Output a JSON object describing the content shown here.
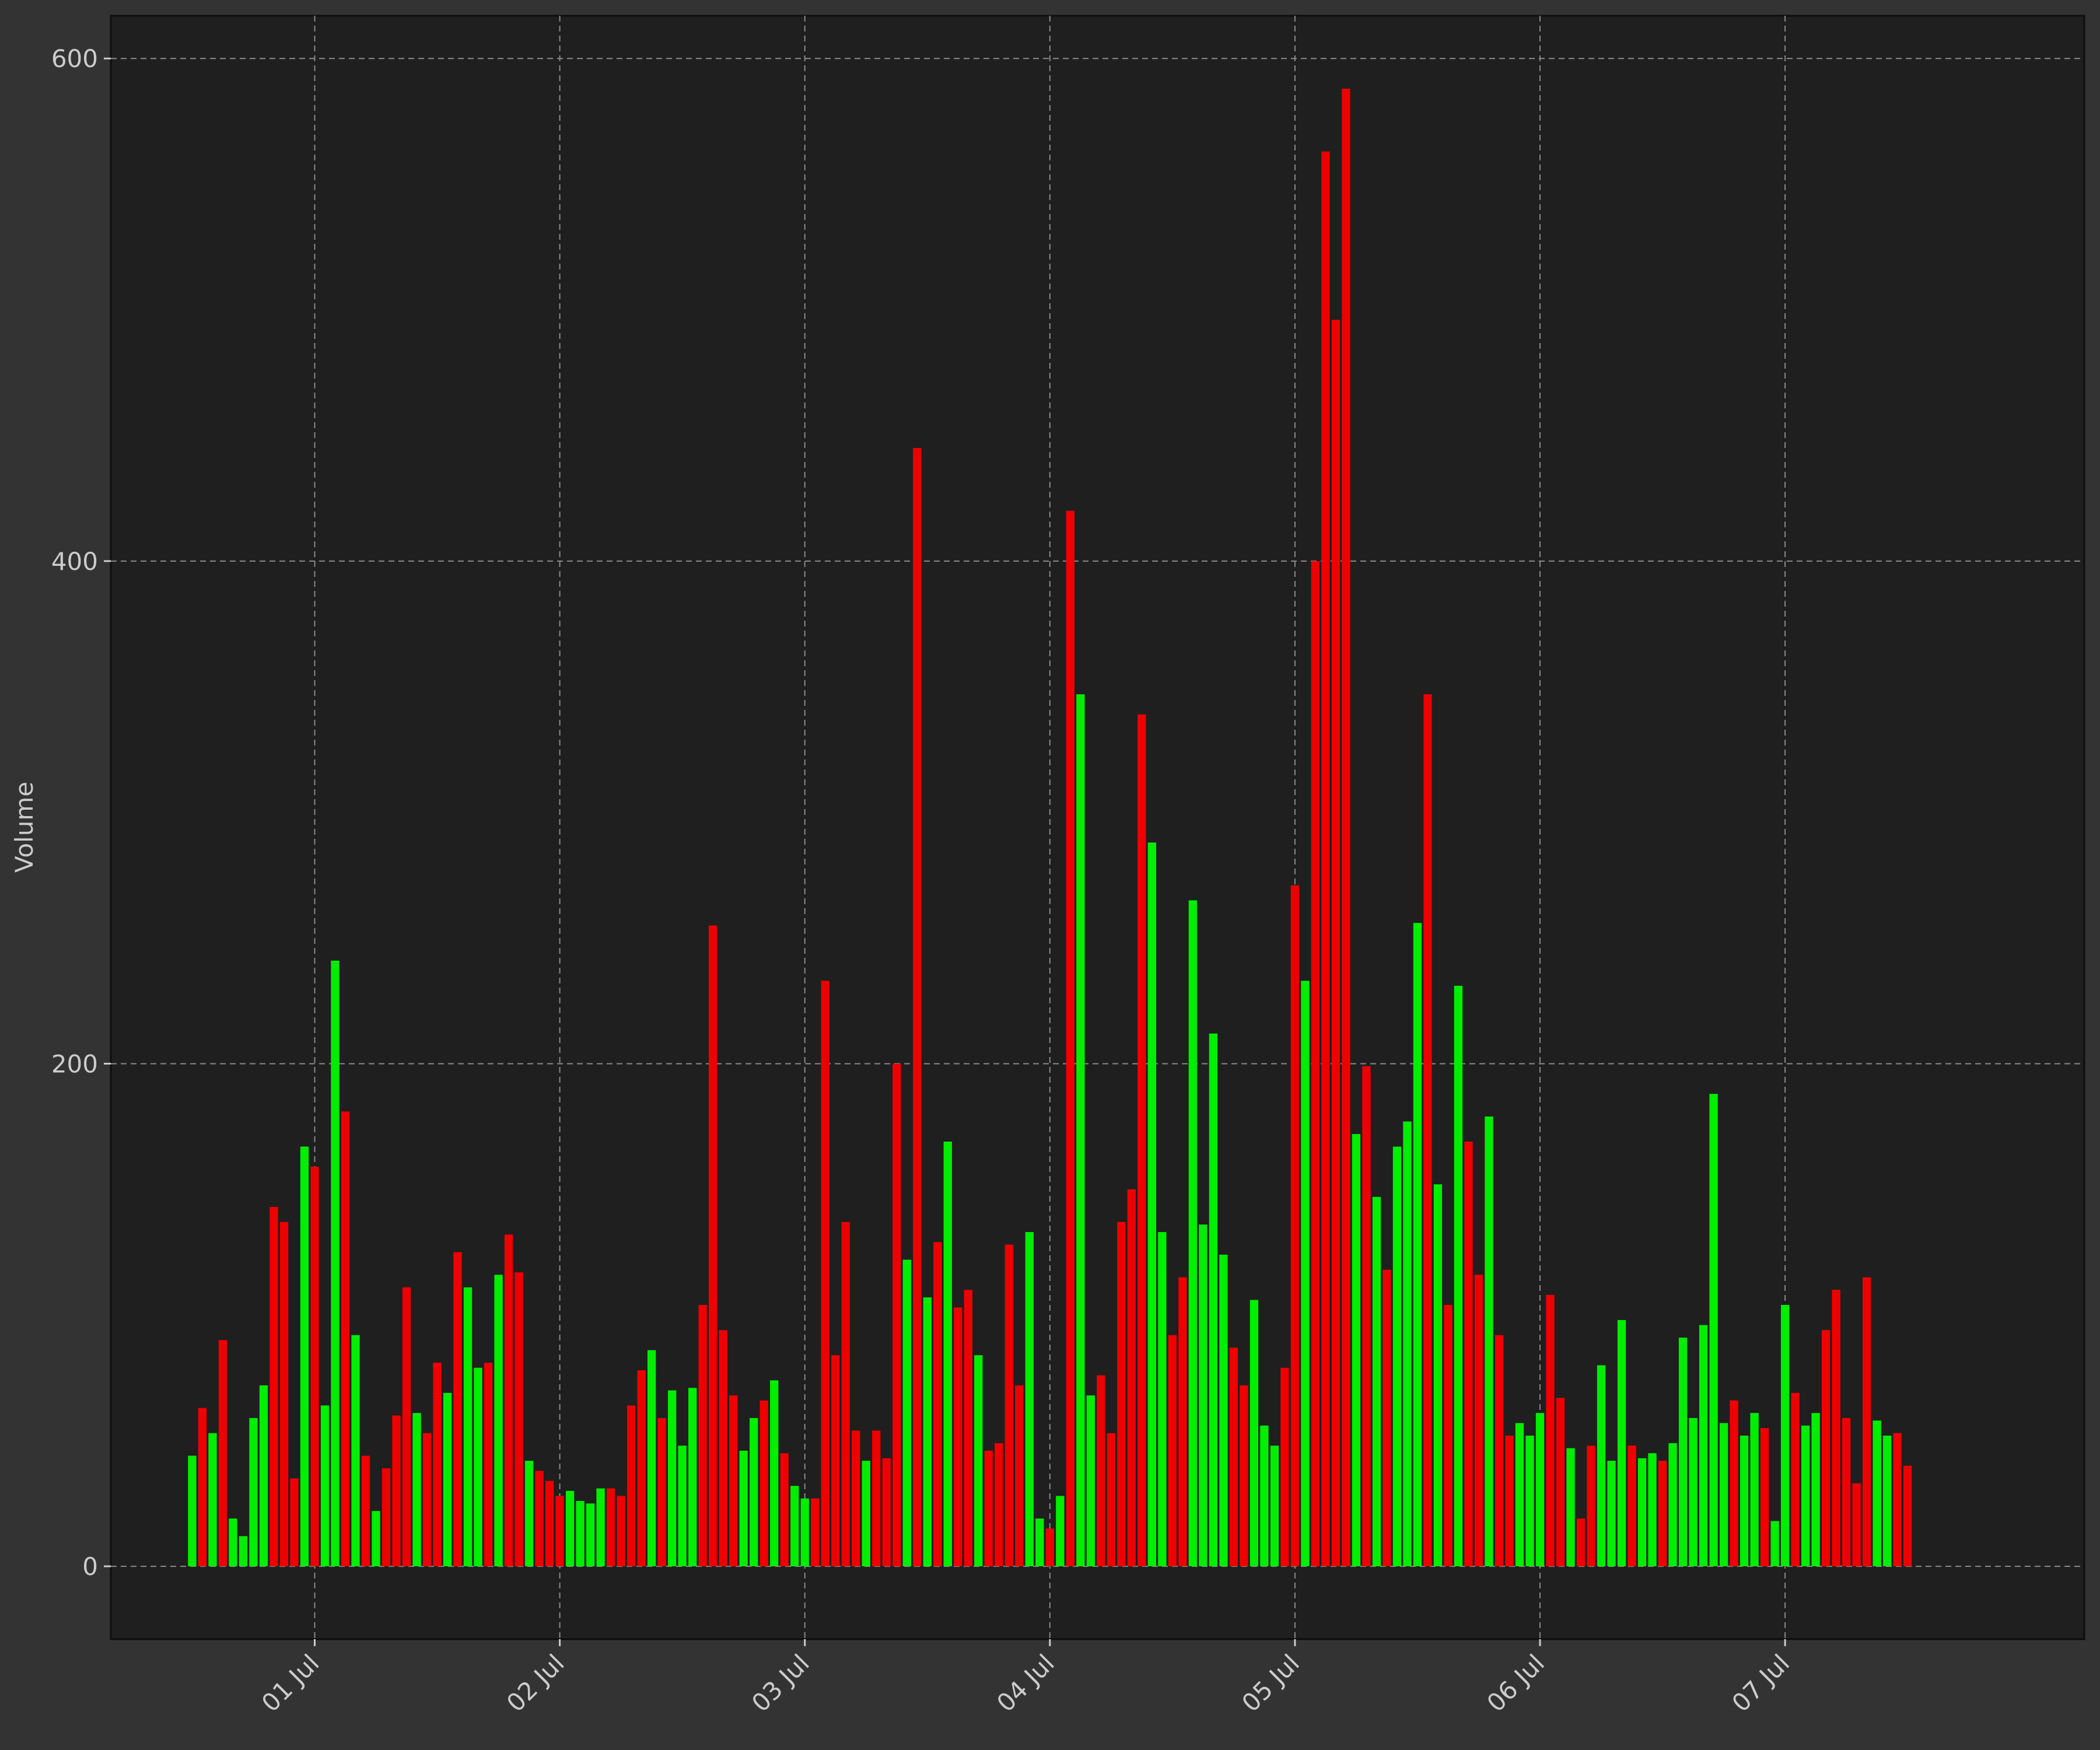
{
  "chart_data": {
    "type": "bar",
    "title": "",
    "xlabel": "",
    "ylabel": "Volume",
    "ylim": [
      -29,
      617
    ],
    "xlim": [
      "2025-06-30T04:02",
      "2025-07-08T05:18"
    ],
    "grid": true,
    "legend": "none",
    "y_ticks": [
      0,
      200,
      400,
      600
    ],
    "x_ticks": [
      {
        "date": "2025-07-01",
        "label": "01 Jul"
      },
      {
        "date": "2025-07-02",
        "label": "02 Jul"
      },
      {
        "date": "2025-07-03",
        "label": "03 Jul"
      },
      {
        "date": "2025-07-04",
        "label": "04 Jul"
      },
      {
        "date": "2025-07-05",
        "label": "05 Jul"
      },
      {
        "date": "2025-07-06",
        "label": "06 Jul"
      },
      {
        "date": "2025-07-07",
        "label": "07 Jul"
      }
    ],
    "colors": {
      "up": "#00ee00",
      "down": "#ee0000",
      "background": "#1f1f1f",
      "figure": "#333333",
      "text": "#cccccc",
      "grid": "#8a8a8a"
    },
    "bars": [
      {
        "t": "2025-06-30T12:00",
        "v": 44,
        "d": "up"
      },
      {
        "t": "2025-06-30T13:00",
        "v": 63,
        "d": "down"
      },
      {
        "t": "2025-06-30T14:00",
        "v": 53,
        "d": "up"
      },
      {
        "t": "2025-06-30T15:00",
        "v": 90,
        "d": "down"
      },
      {
        "t": "2025-06-30T16:00",
        "v": 19,
        "d": "up"
      },
      {
        "t": "2025-06-30T17:00",
        "v": 12,
        "d": "up"
      },
      {
        "t": "2025-06-30T18:00",
        "v": 59,
        "d": "up"
      },
      {
        "t": "2025-06-30T19:00",
        "v": 72,
        "d": "up"
      },
      {
        "t": "2025-06-30T20:00",
        "v": 143,
        "d": "down"
      },
      {
        "t": "2025-06-30T21:00",
        "v": 137,
        "d": "down"
      },
      {
        "t": "2025-06-30T22:00",
        "v": 35,
        "d": "down"
      },
      {
        "t": "2025-06-30T23:00",
        "v": 167,
        "d": "up"
      },
      {
        "t": "2025-07-01T00:00",
        "v": 159,
        "d": "down"
      },
      {
        "t": "2025-07-01T01:00",
        "v": 64,
        "d": "up"
      },
      {
        "t": "2025-07-01T02:00",
        "v": 241,
        "d": "up"
      },
      {
        "t": "2025-07-01T03:00",
        "v": 181,
        "d": "down"
      },
      {
        "t": "2025-07-01T04:00",
        "v": 92,
        "d": "up"
      },
      {
        "t": "2025-07-01T05:00",
        "v": 44,
        "d": "down"
      },
      {
        "t": "2025-07-01T06:00",
        "v": 22,
        "d": "up"
      },
      {
        "t": "2025-07-01T07:00",
        "v": 39,
        "d": "down"
      },
      {
        "t": "2025-07-01T08:00",
        "v": 60,
        "d": "down"
      },
      {
        "t": "2025-07-01T09:00",
        "v": 111,
        "d": "down"
      },
      {
        "t": "2025-07-01T10:00",
        "v": 61,
        "d": "up"
      },
      {
        "t": "2025-07-01T11:00",
        "v": 53,
        "d": "down"
      },
      {
        "t": "2025-07-01T12:00",
        "v": 81,
        "d": "down"
      },
      {
        "t": "2025-07-01T13:00",
        "v": 69,
        "d": "up"
      },
      {
        "t": "2025-07-01T14:00",
        "v": 125,
        "d": "down"
      },
      {
        "t": "2025-07-01T15:00",
        "v": 111,
        "d": "up"
      },
      {
        "t": "2025-07-01T16:00",
        "v": 79,
        "d": "up"
      },
      {
        "t": "2025-07-01T17:00",
        "v": 81,
        "d": "down"
      },
      {
        "t": "2025-07-01T18:00",
        "v": 116,
        "d": "up"
      },
      {
        "t": "2025-07-01T19:00",
        "v": 132,
        "d": "down"
      },
      {
        "t": "2025-07-01T20:00",
        "v": 117,
        "d": "down"
      },
      {
        "t": "2025-07-01T21:00",
        "v": 42,
        "d": "up"
      },
      {
        "t": "2025-07-01T22:00",
        "v": 38,
        "d": "down"
      },
      {
        "t": "2025-07-01T23:00",
        "v": 34,
        "d": "down"
      },
      {
        "t": "2025-07-02T00:00",
        "v": 28,
        "d": "down"
      },
      {
        "t": "2025-07-02T01:00",
        "v": 30,
        "d": "up"
      },
      {
        "t": "2025-07-02T02:00",
        "v": 26,
        "d": "up"
      },
      {
        "t": "2025-07-02T03:00",
        "v": 25,
        "d": "up"
      },
      {
        "t": "2025-07-02T04:00",
        "v": 31,
        "d": "up"
      },
      {
        "t": "2025-07-02T05:00",
        "v": 31,
        "d": "down"
      },
      {
        "t": "2025-07-02T06:00",
        "v": 28,
        "d": "down"
      },
      {
        "t": "2025-07-02T07:00",
        "v": 64,
        "d": "down"
      },
      {
        "t": "2025-07-02T08:00",
        "v": 78,
        "d": "down"
      },
      {
        "t": "2025-07-02T09:00",
        "v": 86,
        "d": "up"
      },
      {
        "t": "2025-07-02T10:00",
        "v": 59,
        "d": "down"
      },
      {
        "t": "2025-07-02T11:00",
        "v": 70,
        "d": "up"
      },
      {
        "t": "2025-07-02T12:00",
        "v": 48,
        "d": "up"
      },
      {
        "t": "2025-07-02T13:00",
        "v": 71,
        "d": "up"
      },
      {
        "t": "2025-07-02T14:00",
        "v": 104,
        "d": "down"
      },
      {
        "t": "2025-07-02T15:00",
        "v": 255,
        "d": "down"
      },
      {
        "t": "2025-07-02T16:00",
        "v": 94,
        "d": "down"
      },
      {
        "t": "2025-07-02T17:00",
        "v": 68,
        "d": "down"
      },
      {
        "t": "2025-07-02T18:00",
        "v": 46,
        "d": "up"
      },
      {
        "t": "2025-07-02T19:00",
        "v": 59,
        "d": "up"
      },
      {
        "t": "2025-07-02T20:00",
        "v": 66,
        "d": "down"
      },
      {
        "t": "2025-07-02T21:00",
        "v": 74,
        "d": "up"
      },
      {
        "t": "2025-07-02T22:00",
        "v": 45,
        "d": "down"
      },
      {
        "t": "2025-07-02T23:00",
        "v": 32,
        "d": "up"
      },
      {
        "t": "2025-07-03T00:00",
        "v": 27,
        "d": "up"
      },
      {
        "t": "2025-07-03T01:00",
        "v": 27,
        "d": "down"
      },
      {
        "t": "2025-07-03T02:00",
        "v": 233,
        "d": "down"
      },
      {
        "t": "2025-07-03T03:00",
        "v": 84,
        "d": "down"
      },
      {
        "t": "2025-07-03T04:00",
        "v": 137,
        "d": "down"
      },
      {
        "t": "2025-07-03T05:00",
        "v": 54,
        "d": "down"
      },
      {
        "t": "2025-07-03T06:00",
        "v": 42,
        "d": "up"
      },
      {
        "t": "2025-07-03T07:00",
        "v": 54,
        "d": "down"
      },
      {
        "t": "2025-07-03T08:00",
        "v": 43,
        "d": "down"
      },
      {
        "t": "2025-07-03T09:00",
        "v": 200,
        "d": "down"
      },
      {
        "t": "2025-07-03T10:00",
        "v": 122,
        "d": "up"
      },
      {
        "t": "2025-07-03T11:00",
        "v": 445,
        "d": "down"
      },
      {
        "t": "2025-07-03T12:00",
        "v": 107,
        "d": "up"
      },
      {
        "t": "2025-07-03T13:00",
        "v": 129,
        "d": "down"
      },
      {
        "t": "2025-07-03T14:00",
        "v": 169,
        "d": "up"
      },
      {
        "t": "2025-07-03T15:00",
        "v": 103,
        "d": "down"
      },
      {
        "t": "2025-07-03T16:00",
        "v": 110,
        "d": "down"
      },
      {
        "t": "2025-07-03T17:00",
        "v": 84,
        "d": "up"
      },
      {
        "t": "2025-07-03T18:00",
        "v": 46,
        "d": "down"
      },
      {
        "t": "2025-07-03T19:00",
        "v": 49,
        "d": "down"
      },
      {
        "t": "2025-07-03T20:00",
        "v": 128,
        "d": "down"
      },
      {
        "t": "2025-07-03T21:00",
        "v": 72,
        "d": "down"
      },
      {
        "t": "2025-07-03T22:00",
        "v": 133,
        "d": "up"
      },
      {
        "t": "2025-07-03T23:00",
        "v": 19,
        "d": "up"
      },
      {
        "t": "2025-07-04T00:00",
        "v": 15,
        "d": "down"
      },
      {
        "t": "2025-07-04T01:00",
        "v": 28,
        "d": "up"
      },
      {
        "t": "2025-07-04T02:00",
        "v": 420,
        "d": "down"
      },
      {
        "t": "2025-07-04T03:00",
        "v": 347,
        "d": "up"
      },
      {
        "t": "2025-07-04T04:00",
        "v": 68,
        "d": "up"
      },
      {
        "t": "2025-07-04T05:00",
        "v": 76,
        "d": "down"
      },
      {
        "t": "2025-07-04T06:00",
        "v": 53,
        "d": "down"
      },
      {
        "t": "2025-07-04T07:00",
        "v": 137,
        "d": "down"
      },
      {
        "t": "2025-07-04T08:00",
        "v": 150,
        "d": "down"
      },
      {
        "t": "2025-07-04T09:00",
        "v": 339,
        "d": "down"
      },
      {
        "t": "2025-07-04T10:00",
        "v": 288,
        "d": "up"
      },
      {
        "t": "2025-07-04T11:00",
        "v": 133,
        "d": "up"
      },
      {
        "t": "2025-07-04T12:00",
        "v": 92,
        "d": "down"
      },
      {
        "t": "2025-07-04T13:00",
        "v": 115,
        "d": "down"
      },
      {
        "t": "2025-07-04T14:00",
        "v": 265,
        "d": "up"
      },
      {
        "t": "2025-07-04T15:00",
        "v": 136,
        "d": "up"
      },
      {
        "t": "2025-07-04T16:00",
        "v": 212,
        "d": "up"
      },
      {
        "t": "2025-07-04T17:00",
        "v": 124,
        "d": "up"
      },
      {
        "t": "2025-07-04T18:00",
        "v": 87,
        "d": "down"
      },
      {
        "t": "2025-07-04T19:00",
        "v": 72,
        "d": "down"
      },
      {
        "t": "2025-07-04T20:00",
        "v": 106,
        "d": "up"
      },
      {
        "t": "2025-07-04T21:00",
        "v": 56,
        "d": "up"
      },
      {
        "t": "2025-07-04T22:00",
        "v": 48,
        "d": "up"
      },
      {
        "t": "2025-07-04T23:00",
        "v": 79,
        "d": "down"
      },
      {
        "t": "2025-07-05T00:00",
        "v": 271,
        "d": "down"
      },
      {
        "t": "2025-07-05T01:00",
        "v": 233,
        "d": "up"
      },
      {
        "t": "2025-07-05T02:00",
        "v": 400,
        "d": "down"
      },
      {
        "t": "2025-07-05T03:00",
        "v": 563,
        "d": "down"
      },
      {
        "t": "2025-07-05T04:00",
        "v": 496,
        "d": "down"
      },
      {
        "t": "2025-07-05T05:00",
        "v": 588,
        "d": "down"
      },
      {
        "t": "2025-07-05T06:00",
        "v": 172,
        "d": "up"
      },
      {
        "t": "2025-07-05T07:00",
        "v": 199,
        "d": "down"
      },
      {
        "t": "2025-07-05T08:00",
        "v": 147,
        "d": "up"
      },
      {
        "t": "2025-07-05T09:00",
        "v": 118,
        "d": "down"
      },
      {
        "t": "2025-07-05T10:00",
        "v": 167,
        "d": "up"
      },
      {
        "t": "2025-07-05T11:00",
        "v": 177,
        "d": "up"
      },
      {
        "t": "2025-07-05T12:00",
        "v": 256,
        "d": "up"
      },
      {
        "t": "2025-07-05T13:00",
        "v": 347,
        "d": "down"
      },
      {
        "t": "2025-07-05T14:00",
        "v": 152,
        "d": "up"
      },
      {
        "t": "2025-07-05T15:00",
        "v": 104,
        "d": "down"
      },
      {
        "t": "2025-07-05T16:00",
        "v": 231,
        "d": "up"
      },
      {
        "t": "2025-07-05T17:00",
        "v": 169,
        "d": "down"
      },
      {
        "t": "2025-07-05T18:00",
        "v": 116,
        "d": "down"
      },
      {
        "t": "2025-07-05T19:00",
        "v": 179,
        "d": "up"
      },
      {
        "t": "2025-07-05T20:00",
        "v": 92,
        "d": "down"
      },
      {
        "t": "2025-07-05T21:00",
        "v": 52,
        "d": "down"
      },
      {
        "t": "2025-07-05T22:00",
        "v": 57,
        "d": "up"
      },
      {
        "t": "2025-07-05T23:00",
        "v": 52,
        "d": "up"
      },
      {
        "t": "2025-07-06T00:00",
        "v": 61,
        "d": "up"
      },
      {
        "t": "2025-07-06T01:00",
        "v": 108,
        "d": "down"
      },
      {
        "t": "2025-07-06T02:00",
        "v": 67,
        "d": "down"
      },
      {
        "t": "2025-07-06T03:00",
        "v": 47,
        "d": "up"
      },
      {
        "t": "2025-07-06T04:00",
        "v": 19,
        "d": "down"
      },
      {
        "t": "2025-07-06T05:00",
        "v": 48,
        "d": "down"
      },
      {
        "t": "2025-07-06T06:00",
        "v": 80,
        "d": "up"
      },
      {
        "t": "2025-07-06T07:00",
        "v": 42,
        "d": "up"
      },
      {
        "t": "2025-07-06T08:00",
        "v": 98,
        "d": "up"
      },
      {
        "t": "2025-07-06T09:00",
        "v": 48,
        "d": "down"
      },
      {
        "t": "2025-07-06T10:00",
        "v": 43,
        "d": "up"
      },
      {
        "t": "2025-07-06T11:00",
        "v": 45,
        "d": "up"
      },
      {
        "t": "2025-07-06T12:00",
        "v": 42,
        "d": "down"
      },
      {
        "t": "2025-07-06T13:00",
        "v": 49,
        "d": "up"
      },
      {
        "t": "2025-07-06T14:00",
        "v": 91,
        "d": "up"
      },
      {
        "t": "2025-07-06T15:00",
        "v": 59,
        "d": "up"
      },
      {
        "t": "2025-07-06T16:00",
        "v": 96,
        "d": "up"
      },
      {
        "t": "2025-07-06T17:00",
        "v": 188,
        "d": "up"
      },
      {
        "t": "2025-07-06T18:00",
        "v": 57,
        "d": "up"
      },
      {
        "t": "2025-07-06T19:00",
        "v": 66,
        "d": "down"
      },
      {
        "t": "2025-07-06T20:00",
        "v": 52,
        "d": "up"
      },
      {
        "t": "2025-07-06T21:00",
        "v": 61,
        "d": "up"
      },
      {
        "t": "2025-07-06T22:00",
        "v": 55,
        "d": "down"
      },
      {
        "t": "2025-07-06T23:00",
        "v": 18,
        "d": "up"
      },
      {
        "t": "2025-07-07T00:00",
        "v": 104,
        "d": "up"
      },
      {
        "t": "2025-07-07T01:00",
        "v": 69,
        "d": "down"
      },
      {
        "t": "2025-07-07T02:00",
        "v": 56,
        "d": "up"
      },
      {
        "t": "2025-07-07T03:00",
        "v": 61,
        "d": "up"
      },
      {
        "t": "2025-07-07T04:00",
        "v": 94,
        "d": "down"
      },
      {
        "t": "2025-07-07T05:00",
        "v": 110,
        "d": "down"
      },
      {
        "t": "2025-07-07T06:00",
        "v": 59,
        "d": "down"
      },
      {
        "t": "2025-07-07T07:00",
        "v": 33,
        "d": "down"
      },
      {
        "t": "2025-07-07T08:00",
        "v": 115,
        "d": "down"
      },
      {
        "t": "2025-07-07T09:00",
        "v": 58,
        "d": "up"
      },
      {
        "t": "2025-07-07T10:00",
        "v": 52,
        "d": "up"
      },
      {
        "t": "2025-07-07T11:00",
        "v": 53,
        "d": "down"
      },
      {
        "t": "2025-07-07T12:00",
        "v": 40,
        "d": "down"
      }
    ]
  }
}
